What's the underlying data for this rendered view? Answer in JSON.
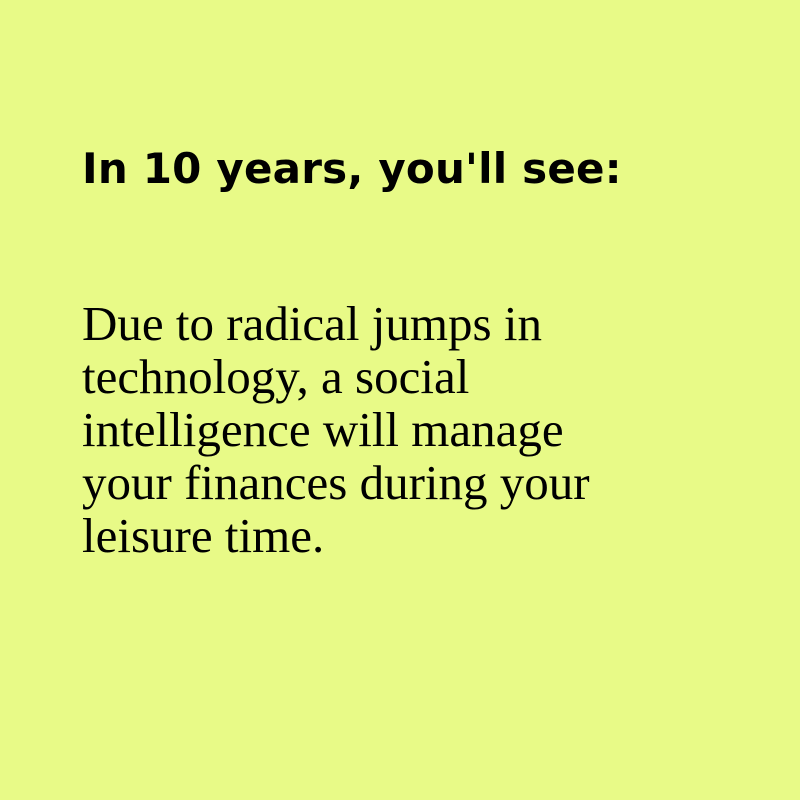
{
  "theme": {
    "background": "#e8fa87",
    "text_color": "#000000"
  },
  "card": {
    "headline": "In 10 years, you'll see:",
    "body_lines": [
      "Due to radical jumps in",
      "technology, a social",
      "intelligence will manage",
      "your finances during your",
      "leisure time."
    ]
  }
}
